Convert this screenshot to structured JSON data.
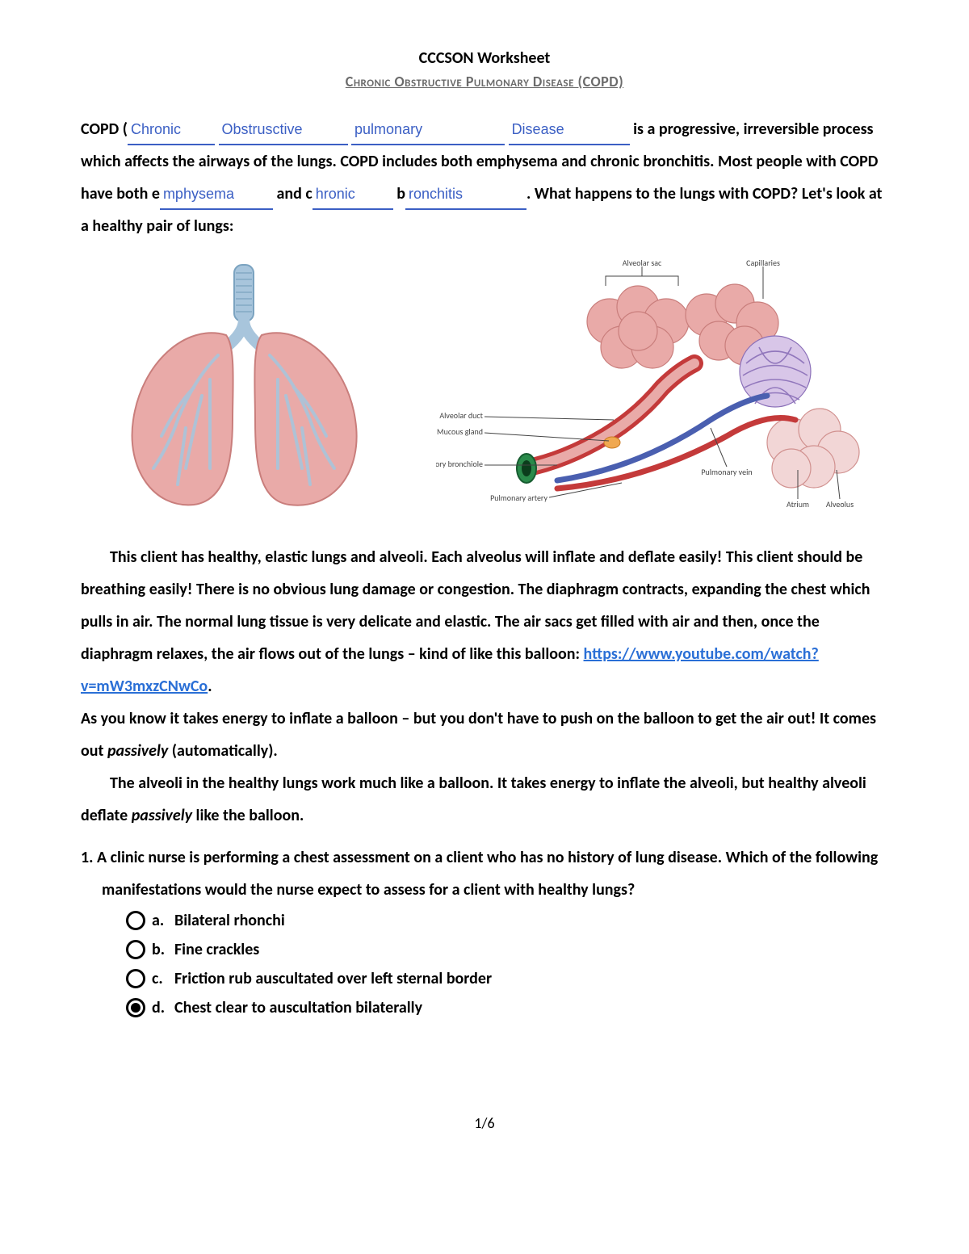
{
  "header": {
    "title": "CCCSON Worksheet",
    "subtitle": "Chronic Obstructive Pulmonary Disease (COPD)"
  },
  "intro": {
    "lead": "COPD (",
    "blank1": "Chronic",
    "blank2": "Obstrusctive",
    "blank3": "pulmonary",
    "blank4": "Disease",
    "after_blanks": "is a progressive, irreversible process which affects the airways of the lungs. COPD includes both emphysema and chronic bronchitis. Most people with COPD have both e",
    "blank5": "mphysema",
    "mid1": " and c",
    "blank6": "hronic",
    "mid2": " b",
    "blank7": "ronchitis",
    "tail": ". What happens to the lungs with COPD? Let's look at a healthy pair of lungs:"
  },
  "diagram_labels": {
    "alveolar_sac": "Alveolar sac",
    "capillaries": "Capillaries",
    "alveolar_duct": "Alveolar duct",
    "mucous_gland": "Mucous gland",
    "respiratory_bronchiole": "Respiratory bronchiole",
    "pulmonary_artery": "Pulmonary artery",
    "pulmonary_vein": "Pulmonary vein",
    "atrium": "Atrium",
    "alveolus": "Alveolus"
  },
  "colors": {
    "lung_fill": "#e9aaa8",
    "lung_stroke": "#c97e7c",
    "trachea": "#a8c5dc",
    "trachea_dark": "#7ba3c0",
    "vessel_red": "#c43a3a",
    "vessel_blue": "#4a5fb0",
    "cap_purple": "#8a6fb8",
    "blank_blue": "#3b5fc4",
    "link_blue": "#2a6fd6",
    "label_gray": "#444"
  },
  "paragraphs": {
    "p1a": "This client has healthy, elastic lungs and alveoli. Each alveolus will inflate and deflate easily! This client should be breathing easily! There is no obvious lung damage or congestion. The diaphragm contracts, expanding the chest which pulls in air. The normal lung tissue is very delicate and elastic. The air sacs get filled with air and then, once the diaphragm relaxes, the air flows out of the lungs – kind of like this balloon: ",
    "link_text": "https://www.youtube.com/watch?v=mW3mxzCNwCo",
    "p1b": ".",
    "p2a": "As you know it takes energy to inflate a balloon – but you don't have to push on the balloon to get the air out! It comes out ",
    "p2_italic": "passively",
    "p2b": " (automatically).",
    "p3a": "The alveoli in the healthy lungs work much like a balloon. It takes energy to inflate the alveoli, but healthy alveoli deflate ",
    "p3_italic": "passively",
    "p3b": " like the balloon."
  },
  "question": {
    "number": "1.",
    "text": "A clinic nurse is performing a chest assessment on a client who has no history of lung disease. Which of the following manifestations would the nurse expect to assess for a client with healthy lungs?",
    "options": [
      {
        "letter": "a.",
        "text": "Bilateral rhonchi",
        "selected": false
      },
      {
        "letter": "b.",
        "text": "Fine crackles",
        "selected": false
      },
      {
        "letter": "c.",
        "text": "Friction rub auscultated over left sternal border",
        "selected": false
      },
      {
        "letter": "d.",
        "text": "Chest clear to auscultation bilaterally",
        "selected": true
      }
    ]
  },
  "page_number": "1/6",
  "blank_widths": {
    "b1": 108,
    "b2": 160,
    "b3": 190,
    "b4": 150,
    "b5": 140,
    "b6": 100,
    "b7": 150
  }
}
